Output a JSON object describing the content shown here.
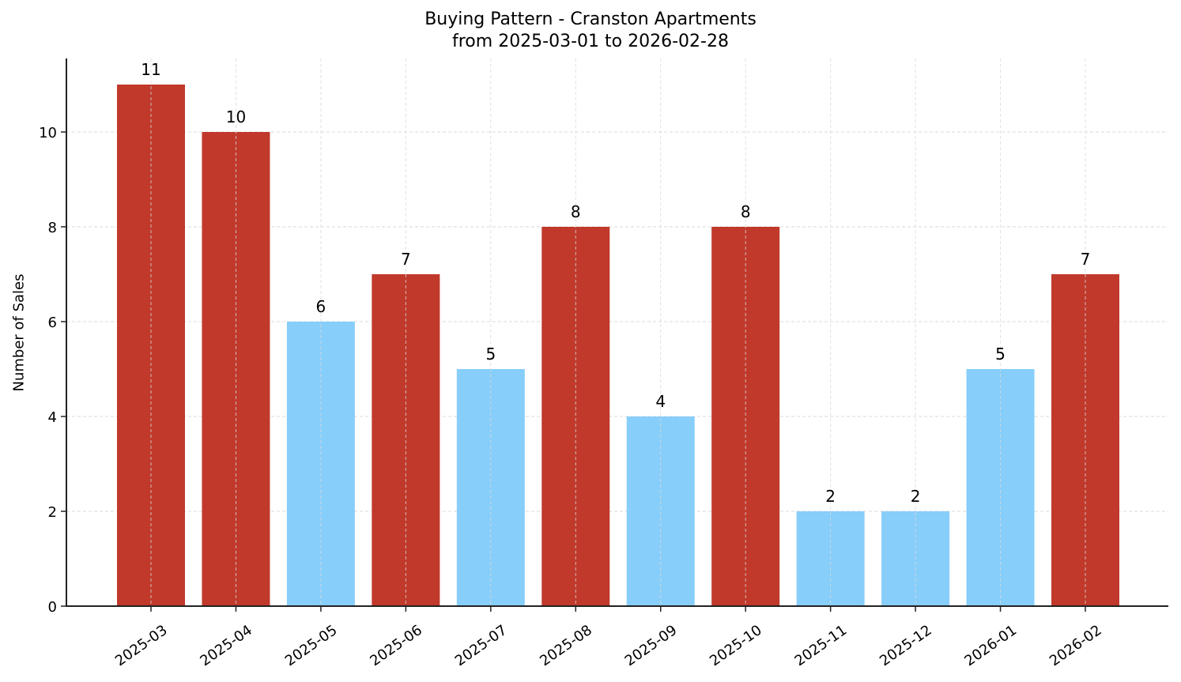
{
  "chart_data": {
    "type": "bar",
    "title": "Buying Pattern - Cranston Apartments",
    "subtitle": "from 2025-03-01 to 2026-02-28",
    "xlabel": "",
    "ylabel": "Number of Sales",
    "ylim": [
      0,
      11.55
    ],
    "yticks": [
      0,
      2,
      4,
      6,
      8,
      10
    ],
    "grid": true,
    "legend": null,
    "categories": [
      "2025-03",
      "2025-04",
      "2025-05",
      "2025-06",
      "2025-07",
      "2025-08",
      "2025-09",
      "2025-10",
      "2025-11",
      "2025-12",
      "2026-01",
      "2026-02"
    ],
    "values": [
      11,
      10,
      6,
      7,
      5,
      8,
      4,
      8,
      2,
      2,
      5,
      7
    ],
    "bar_colors": [
      "#C0392B",
      "#C0392B",
      "#87CEFA",
      "#C0392B",
      "#87CEFA",
      "#C0392B",
      "#87CEFA",
      "#C0392B",
      "#87CEFA",
      "#87CEFA",
      "#87CEFA",
      "#C0392B"
    ],
    "data_labels": [
      "11",
      "10",
      "6",
      "7",
      "5",
      "8",
      "4",
      "8",
      "2",
      "2",
      "5",
      "7"
    ]
  },
  "colors": {
    "high": "#C0392B",
    "low": "#87CEFA",
    "grid": "#d9d9d9",
    "axis": "#222222"
  }
}
